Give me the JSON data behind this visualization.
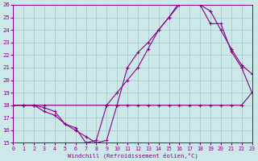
{
  "xlabel": "Windchill (Refroidissement éolien,°C)",
  "bg_color": "#cce8e8",
  "line_color": "#880088",
  "grid_color": "#aacccc",
  "xmin": 0,
  "xmax": 23,
  "ymin": 15,
  "ymax": 26,
  "line1_x": [
    0,
    1,
    2,
    3,
    4,
    5,
    6,
    7,
    8,
    9,
    10,
    11,
    12,
    13,
    14,
    15,
    16,
    17,
    18,
    19,
    20,
    21,
    22,
    23
  ],
  "line1_y": [
    18,
    18,
    18,
    17.5,
    17.2,
    16.5,
    16.2,
    15.0,
    15.2,
    18.0,
    18.0,
    18.0,
    18.0,
    18.0,
    18.0,
    18.0,
    18.0,
    18.0,
    18.0,
    18.0,
    18.0,
    18.0,
    18.0,
    19.0
  ],
  "line2_x": [
    0,
    1,
    2,
    3,
    4,
    5,
    6,
    7,
    8,
    9,
    10,
    11,
    12,
    13,
    14,
    15,
    16,
    17,
    18,
    19,
    20,
    21,
    22,
    23
  ],
  "line2_y": [
    18,
    18,
    18,
    17.8,
    17.5,
    16.5,
    16.0,
    15.5,
    15.0,
    15.2,
    18.0,
    21.0,
    22.2,
    23.0,
    24.0,
    25.0,
    26.0,
    26.2,
    26.0,
    24.5,
    24.5,
    22.3,
    21.0,
    19.0
  ],
  "line3_x": [
    0,
    1,
    2,
    3,
    9,
    10,
    11,
    12,
    13,
    14,
    15,
    16,
    17,
    18,
    19,
    20,
    21,
    22,
    23
  ],
  "line3_y": [
    18,
    18,
    18,
    18,
    18,
    19.0,
    20.0,
    21.0,
    22.5,
    24.0,
    25.0,
    26.2,
    26.2,
    26.0,
    25.5,
    24.0,
    22.5,
    21.2,
    20.5
  ]
}
